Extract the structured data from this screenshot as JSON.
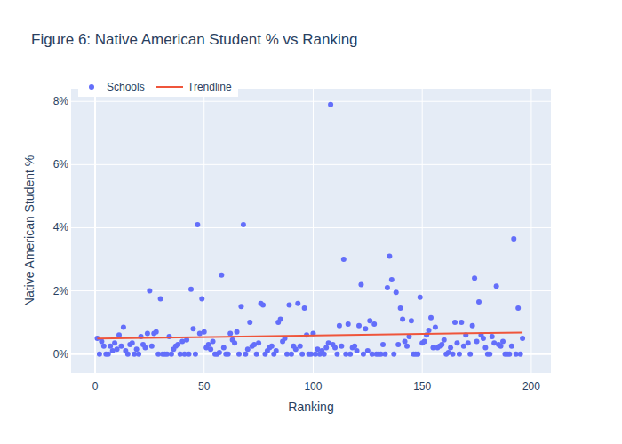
{
  "chart_data": {
    "type": "scatter",
    "title": "Figure 6: Native American Student % vs Ranking",
    "x_label": "Ranking",
    "y_label": "Native American Student %",
    "xlim": [
      -11,
      209
    ],
    "ylim": [
      -0.6,
      8.4
    ],
    "xticks": [
      0,
      50,
      100,
      150,
      200
    ],
    "yticks": [
      {
        "value": 0,
        "label": "0%"
      },
      {
        "value": 2,
        "label": "2%"
      },
      {
        "value": 4,
        "label": "4%"
      },
      {
        "value": 6,
        "label": "6%"
      },
      {
        "value": 8,
        "label": "8%"
      }
    ],
    "grid": true,
    "legend": "top-left",
    "series": [
      {
        "name": "Schools",
        "type": "scatter",
        "marker": "circle",
        "color": "#636efa",
        "x": [
          1,
          2,
          3,
          4,
          5,
          6,
          7,
          8,
          9,
          10,
          11,
          12,
          13,
          14,
          15,
          16,
          17,
          18,
          19,
          20,
          21,
          22,
          23,
          24,
          25,
          26,
          27,
          28,
          29,
          30,
          31,
          32,
          33,
          34,
          35,
          36,
          37,
          38,
          39,
          40,
          41,
          42,
          43,
          44,
          45,
          46,
          47,
          48,
          49,
          50,
          51,
          52,
          53,
          54,
          55,
          56,
          57,
          58,
          59,
          60,
          61,
          62,
          63,
          64,
          65,
          66,
          67,
          68,
          69,
          70,
          71,
          72,
          73,
          74,
          75,
          76,
          77,
          78,
          79,
          80,
          81,
          82,
          83,
          84,
          85,
          86,
          87,
          88,
          89,
          90,
          91,
          92,
          93,
          94,
          95,
          96,
          97,
          98,
          99,
          100,
          101,
          102,
          103,
          104,
          105,
          106,
          107,
          108,
          109,
          110,
          111,
          112,
          113,
          114,
          115,
          116,
          117,
          118,
          119,
          120,
          121,
          122,
          123,
          124,
          125,
          126,
          127,
          128,
          129,
          130,
          131,
          132,
          133,
          134,
          135,
          136,
          137,
          138,
          139,
          140,
          141,
          142,
          143,
          144,
          145,
          146,
          147,
          148,
          149,
          150,
          151,
          152,
          153,
          154,
          155,
          156,
          157,
          158,
          159,
          160,
          161,
          162,
          163,
          164,
          165,
          166,
          167,
          168,
          169,
          170,
          171,
          172,
          173,
          174,
          175,
          176,
          177,
          178,
          179,
          180,
          181,
          182,
          183,
          184,
          185,
          186,
          187,
          188,
          189,
          190,
          191,
          192,
          193,
          194,
          195,
          196
        ],
        "values": [
          0.5,
          0,
          0.4,
          0.25,
          0,
          0,
          0.25,
          0.1,
          0.35,
          0.15,
          0.6,
          0.25,
          0.85,
          0.1,
          0,
          0.3,
          0.35,
          0,
          0.15,
          0,
          0.55,
          0.3,
          0.2,
          0.65,
          2.0,
          0.25,
          0.65,
          0.7,
          0,
          1.75,
          0,
          0,
          0,
          0.55,
          0,
          0.15,
          0.25,
          0.3,
          0,
          0.4,
          0,
          0.45,
          0,
          2.05,
          0.8,
          0,
          4.1,
          0.65,
          1.75,
          0.7,
          0.2,
          0.3,
          0.15,
          0.4,
          0,
          0,
          0.05,
          2.5,
          0.2,
          0,
          0,
          0.65,
          0.45,
          0.35,
          0.7,
          0,
          1.5,
          4.1,
          0,
          0.15,
          1.0,
          0.25,
          0.3,
          0,
          0.35,
          1.6,
          1.55,
          0,
          0.1,
          0.2,
          0.25,
          0,
          0.1,
          1.0,
          1.1,
          0.4,
          0.5,
          0,
          1.55,
          0,
          0.25,
          0.15,
          1.6,
          0.25,
          0,
          1.45,
          0.6,
          0,
          0,
          0.65,
          0,
          0.15,
          0,
          0.1,
          0,
          0.2,
          0.35,
          7.9,
          0.3,
          0.2,
          0,
          0.9,
          0.25,
          3.0,
          0,
          0.95,
          0,
          0.2,
          0.25,
          0.1,
          0.9,
          2.2,
          0,
          0.8,
          0.1,
          1.05,
          0,
          0.95,
          0,
          0,
          0,
          0.3,
          0,
          2.1,
          3.1,
          2.35,
          0,
          1.95,
          0.3,
          1.45,
          1.1,
          0.4,
          0.25,
          0.55,
          1.05,
          0,
          0,
          0,
          1.8,
          0.35,
          0.4,
          0.6,
          0.75,
          1.15,
          0.2,
          0.85,
          0.2,
          0.25,
          0.3,
          0.45,
          0,
          0.05,
          0.2,
          0,
          1.0,
          0.35,
          0,
          1.0,
          0.25,
          0.6,
          0.35,
          0,
          0.9,
          2.4,
          0.4,
          1.65,
          0.6,
          0.5,
          0.2,
          0,
          0,
          0.55,
          0.35,
          2.15,
          0.3,
          0.25,
          0.4,
          0,
          0,
          0,
          0.25,
          3.65,
          0,
          1.45,
          0,
          0.5
        ]
      },
      {
        "name": "Trendline",
        "type": "line",
        "line_style": "solid",
        "color": "#ef553b",
        "x": [
          1,
          196
        ],
        "values": [
          0.49,
          0.68
        ]
      }
    ]
  }
}
